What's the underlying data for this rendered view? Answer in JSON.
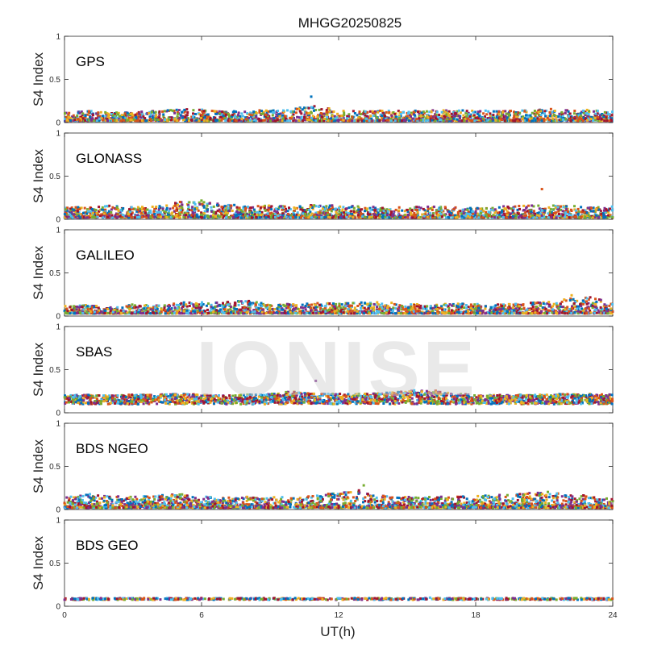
{
  "chart_data": {
    "type": "scatter",
    "title": "MHGG20250825",
    "xlabel": "UT(h)",
    "ylabel": "S4 Index",
    "xlim": [
      0,
      24
    ],
    "ylim": [
      0,
      1
    ],
    "xticks": [
      0,
      6,
      12,
      18,
      24
    ],
    "yticks": [
      0,
      0.5,
      1
    ],
    "ytick_labels": [
      "0",
      "0.5",
      "1"
    ],
    "grid": false,
    "watermark": "IONISE",
    "series_colors": [
      "#0072BD",
      "#D95319",
      "#EDB120",
      "#7E2F8E",
      "#77AC30",
      "#4DBEEE",
      "#A2142F"
    ],
    "panels": [
      {
        "label": "GPS",
        "typical_s4": [
          0.02,
          0.18
        ],
        "x": [
          0,
          1,
          2,
          3,
          4,
          5,
          6,
          7,
          8,
          9,
          10,
          11,
          12,
          13,
          14,
          15,
          16,
          17,
          18,
          19,
          20,
          21,
          22,
          23,
          24
        ],
        "s4_envelope": [
          0.12,
          0.14,
          0.12,
          0.12,
          0.14,
          0.16,
          0.15,
          0.13,
          0.14,
          0.15,
          0.16,
          0.2,
          0.14,
          0.13,
          0.15,
          0.13,
          0.15,
          0.14,
          0.15,
          0.13,
          0.14,
          0.16,
          0.15,
          0.15,
          0.14
        ],
        "peak": {
          "x": 10.8,
          "y": 0.3
        }
      },
      {
        "label": "GLONASS",
        "typical_s4": [
          0.02,
          0.2
        ],
        "x": [
          0,
          1,
          2,
          3,
          4,
          5,
          6,
          7,
          8,
          9,
          10,
          11,
          12,
          13,
          14,
          15,
          16,
          17,
          18,
          19,
          20,
          21,
          22,
          23,
          24
        ],
        "s4_envelope": [
          0.14,
          0.14,
          0.16,
          0.14,
          0.15,
          0.2,
          0.22,
          0.18,
          0.15,
          0.16,
          0.15,
          0.17,
          0.16,
          0.15,
          0.14,
          0.14,
          0.15,
          0.14,
          0.13,
          0.15,
          0.16,
          0.16,
          0.16,
          0.14,
          0.15
        ],
        "peak": {
          "x": 20.9,
          "y": 0.35
        }
      },
      {
        "label": "GALILEO",
        "typical_s4": [
          0.03,
          0.2
        ],
        "x": [
          0,
          1,
          2,
          3,
          4,
          5,
          6,
          7,
          8,
          9,
          10,
          11,
          12,
          13,
          14,
          15,
          16,
          17,
          18,
          19,
          20,
          21,
          22,
          23,
          24
        ],
        "s4_envelope": [
          0.12,
          0.13,
          0.1,
          0.14,
          0.12,
          0.16,
          0.16,
          0.16,
          0.18,
          0.14,
          0.14,
          0.15,
          0.15,
          0.16,
          0.16,
          0.14,
          0.13,
          0.15,
          0.14,
          0.14,
          0.14,
          0.17,
          0.2,
          0.22,
          0.15
        ],
        "peak": {
          "x": 22.2,
          "y": 0.24
        }
      },
      {
        "label": "SBAS",
        "typical_s4": [
          0.1,
          0.22
        ],
        "x": [
          0,
          1,
          2,
          3,
          4,
          5,
          6,
          7,
          8,
          9,
          10,
          11,
          12,
          13,
          14,
          15,
          16,
          17,
          18,
          19,
          20,
          21,
          22,
          23,
          24
        ],
        "s4_envelope": [
          0.2,
          0.21,
          0.2,
          0.21,
          0.21,
          0.22,
          0.21,
          0.2,
          0.21,
          0.22,
          0.25,
          0.22,
          0.22,
          0.22,
          0.23,
          0.26,
          0.27,
          0.22,
          0.21,
          0.21,
          0.21,
          0.21,
          0.22,
          0.22,
          0.21
        ],
        "peak": {
          "x": 11,
          "y": 0.37
        }
      },
      {
        "label": "BDS NGEO",
        "typical_s4": [
          0.02,
          0.2
        ],
        "x": [
          0,
          1,
          2,
          3,
          4,
          5,
          6,
          7,
          8,
          9,
          10,
          11,
          12,
          13,
          14,
          15,
          16,
          17,
          18,
          19,
          20,
          21,
          22,
          23,
          24
        ],
        "s4_envelope": [
          0.14,
          0.18,
          0.16,
          0.15,
          0.16,
          0.18,
          0.15,
          0.14,
          0.15,
          0.14,
          0.16,
          0.16,
          0.2,
          0.24,
          0.16,
          0.15,
          0.15,
          0.15,
          0.16,
          0.17,
          0.18,
          0.22,
          0.18,
          0.16,
          0.12
        ],
        "peak": {
          "x": 13.1,
          "y": 0.28
        }
      },
      {
        "label": "BDS GEO",
        "typical_s4": [
          0.06,
          0.1
        ],
        "x": [
          0,
          1,
          2,
          3,
          4,
          5,
          6,
          7,
          8,
          9,
          10,
          11,
          12,
          13,
          14,
          15,
          16,
          17,
          18,
          19,
          20,
          21,
          22,
          23,
          24
        ],
        "s4_envelope": [
          0.09,
          0.09,
          0.09,
          0.09,
          0.09,
          0.09,
          0.09,
          0.09,
          0.09,
          0.09,
          0.08,
          0.08,
          0.08,
          0.08,
          0.09,
          0.09,
          0.1,
          0.1,
          0.09,
          0.09,
          0.09,
          0.09,
          0.08,
          0.08,
          0.09
        ],
        "peak": {
          "x": 16,
          "y": 0.1
        }
      }
    ]
  }
}
